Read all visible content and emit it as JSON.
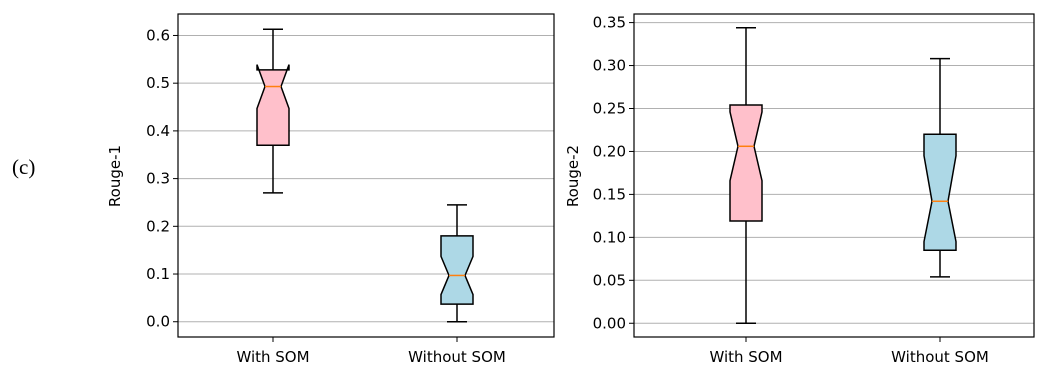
{
  "panel_label": "(c)",
  "chart_data": [
    {
      "type": "box",
      "ylabel": "Rouge-1",
      "ylim": [
        -0.032,
        0.645
      ],
      "yticks": [
        0.0,
        0.1,
        0.2,
        0.3,
        0.4,
        0.5,
        0.6
      ],
      "ytick_labels": [
        "0.0",
        "0.1",
        "0.2",
        "0.3",
        "0.4",
        "0.5",
        "0.6"
      ],
      "grid": "horizontal",
      "notched": true,
      "categories": [
        "With SOM",
        "Without SOM"
      ],
      "boxes": [
        {
          "category": "With SOM",
          "whisker_low": 0.27,
          "q1": 0.37,
          "median": 0.493,
          "q3": 0.528,
          "whisker_high": 0.613,
          "notch_low": 0.447,
          "notch_high": 0.539,
          "color": "#ffc0cb"
        },
        {
          "category": "Without SOM",
          "whisker_low": 0.0,
          "q1": 0.037,
          "median": 0.097,
          "q3": 0.18,
          "whisker_high": 0.245,
          "notch_low": 0.057,
          "notch_high": 0.137,
          "color": "#add8e6"
        }
      ]
    },
    {
      "type": "box",
      "ylabel": "Rouge-2",
      "ylim": [
        -0.016,
        0.36
      ],
      "yticks": [
        0.0,
        0.05,
        0.1,
        0.15,
        0.2,
        0.25,
        0.3,
        0.35
      ],
      "ytick_labels": [
        "0.00",
        "0.05",
        "0.10",
        "0.15",
        "0.20",
        "0.25",
        "0.30",
        "0.35"
      ],
      "grid": "horizontal",
      "notched": true,
      "categories": [
        "With SOM",
        "Without SOM"
      ],
      "boxes": [
        {
          "category": "With SOM",
          "whisker_low": 0.0,
          "q1": 0.119,
          "median": 0.206,
          "q3": 0.254,
          "whisker_high": 0.344,
          "notch_low": 0.166,
          "notch_high": 0.246,
          "color": "#ffc0cb"
        },
        {
          "category": "Without SOM",
          "whisker_low": 0.054,
          "q1": 0.085,
          "median": 0.142,
          "q3": 0.22,
          "whisker_high": 0.308,
          "notch_low": 0.095,
          "notch_high": 0.195,
          "color": "#add8e6"
        }
      ]
    }
  ]
}
